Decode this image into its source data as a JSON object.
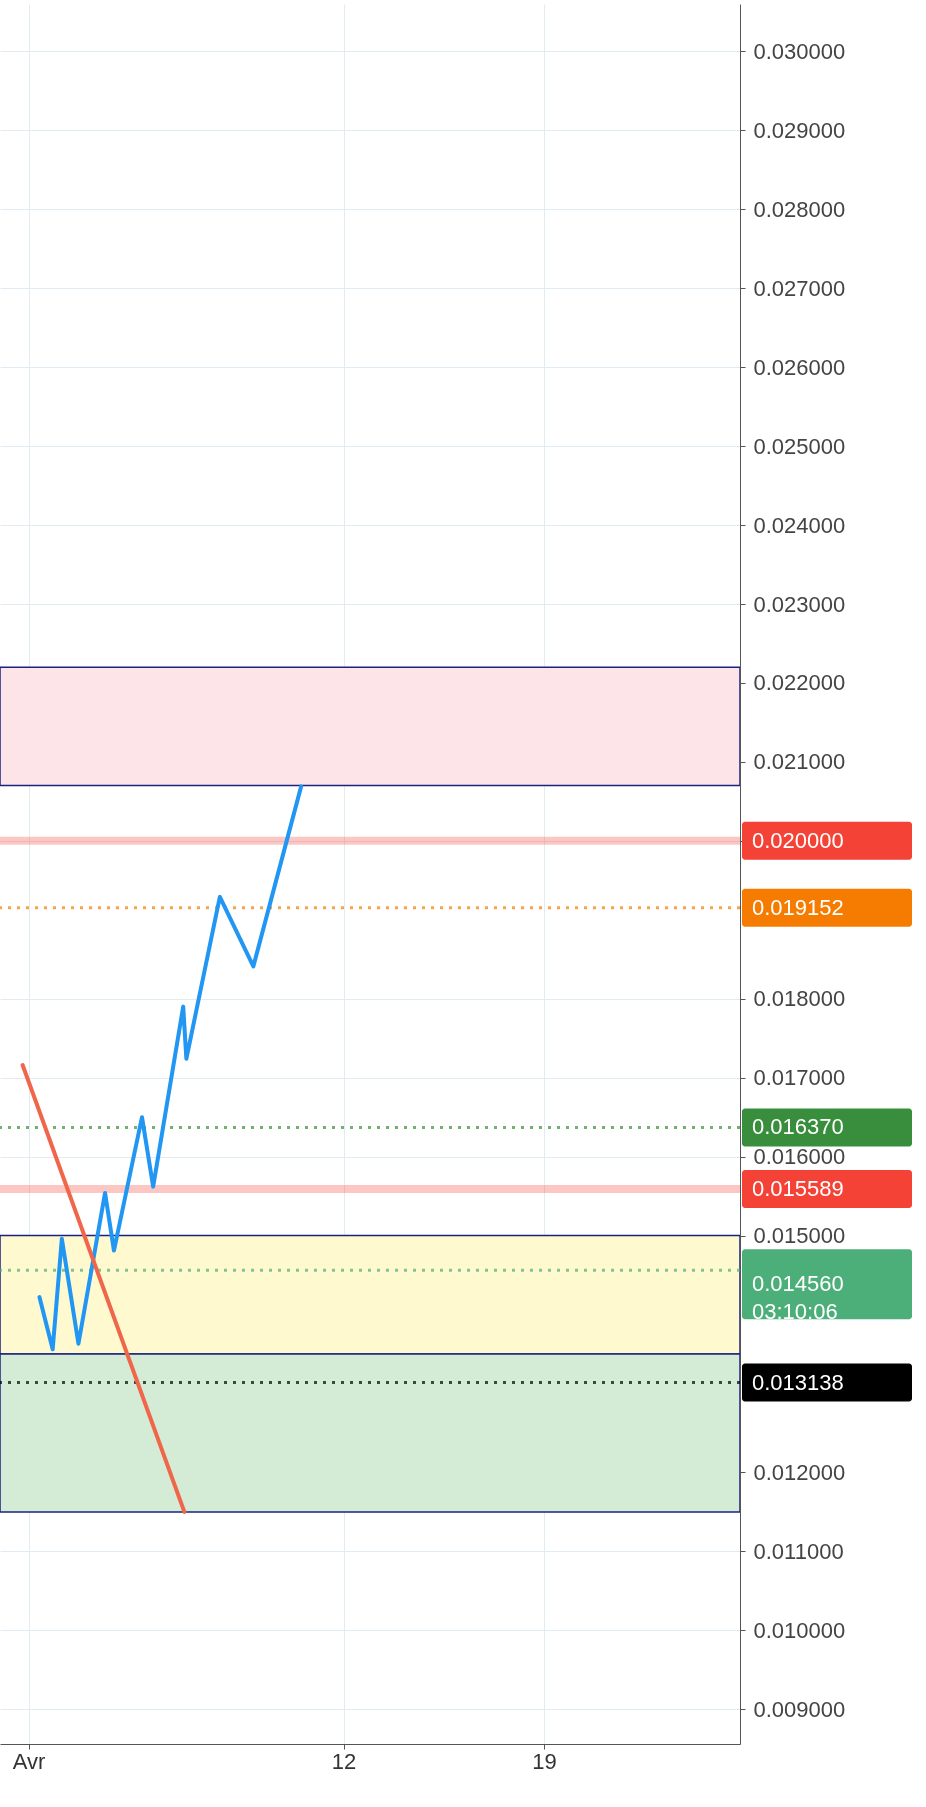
{
  "chart_data": {
    "type": "line",
    "x": [
      1.38,
      1.84,
      2.16,
      2.74,
      3.67,
      3.98,
      4.96,
      5.35,
      6.4,
      6.51,
      7.68,
      8.85,
      10.52
    ],
    "series": [
      {
        "color": "#2196f3",
        "values": [
          0.01422,
          0.01356,
          0.01496,
          0.01363,
          0.01554,
          0.01481,
          0.0165,
          0.01562,
          0.0179,
          0.01724,
          0.01929,
          0.01841,
          0.02069
        ]
      },
      {
        "type": "line",
        "color": "#f0664a",
        "x": [
          0.79,
          6.44
        ],
        "values": [
          0.01716,
          0.0115
        ]
      }
    ],
    "xlim": [
      0,
      25.85
    ],
    "xticks": [
      {
        "value": 1,
        "label": "Avr"
      },
      12,
      19
    ],
    "ylim": [
      0.00856,
      0.0306
    ],
    "yticks": [
      {
        "value": 0.009,
        "label": "0.009000"
      },
      {
        "value": 0.01,
        "label": "0.010000"
      },
      {
        "value": 0.011,
        "label": "0.011000"
      },
      {
        "value": 0.012,
        "label": "0.012000"
      },
      {
        "value": 0.015,
        "label": "0.015000"
      },
      {
        "value": 0.016,
        "label": "0.016000"
      },
      {
        "value": 0.017,
        "label": "0.017000"
      },
      {
        "value": 0.018,
        "label": "0.018000"
      },
      {
        "value": 0.02,
        "label": "0.020000"
      },
      {
        "value": 0.021,
        "label": "0.021000"
      },
      {
        "value": 0.022,
        "label": "0.022000"
      },
      {
        "value": 0.023,
        "label": "0.023000"
      },
      {
        "value": 0.024,
        "label": "0.024000"
      },
      {
        "value": 0.025,
        "label": "0.025000"
      },
      {
        "value": 0.026,
        "label": "0.026000"
      },
      {
        "value": 0.027,
        "label": "0.027000"
      },
      {
        "value": 0.028,
        "label": "0.028000"
      },
      {
        "value": 0.029,
        "label": "0.029000"
      },
      {
        "value": 0.03,
        "label": "0.030000"
      }
    ],
    "grid": true,
    "bands": [
      {
        "axis": "y",
        "from": 0.0207,
        "to": 0.0222,
        "color": "#fde4e8"
      },
      {
        "axis": "y",
        "from": 0.0135,
        "to": 0.015,
        "color": "#fff9d0"
      },
      {
        "axis": "y",
        "from": 0.0115,
        "to": 0.0135,
        "color": "#d4ebd5"
      }
    ],
    "ref_lines": [
      {
        "axis": "y",
        "value": 0.02,
        "label": "0.020000",
        "color": "#f44336",
        "line_style": "solid"
      },
      {
        "axis": "y",
        "value": 0.019152,
        "label": "0.019152",
        "color": "#f57c00",
        "line_style": "dotted"
      },
      {
        "axis": "y",
        "value": 0.01637,
        "label": "0.016370",
        "color": "#388e3c",
        "line_style": "dotted"
      },
      {
        "axis": "y",
        "value": 0.015589,
        "label": "0.015589",
        "color": "#f44336",
        "line_style": "solid"
      },
      {
        "axis": "y",
        "value": 0.01456,
        "label": "0.014560\n03:10:06",
        "color": "#4caf79",
        "line_style": "dotted"
      },
      {
        "axis": "y",
        "value": 0.013138,
        "label": "0.013138",
        "color": "#000000",
        "line_style": "dotted"
      }
    ]
  }
}
